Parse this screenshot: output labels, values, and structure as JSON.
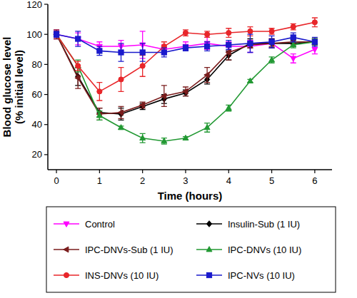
{
  "chart_data": {
    "type": "line",
    "x_label": "Time (hours)",
    "y_label": [
      "Blood glucose level",
      "(% initial level)"
    ],
    "x": [
      0,
      0.5,
      1,
      1.5,
      2,
      2.5,
      3,
      3.5,
      4,
      4.5,
      5,
      5.5,
      6
    ],
    "xlim": [
      -0.2,
      6.4
    ],
    "xticks": [
      0,
      1,
      2,
      3,
      4,
      5,
      6
    ],
    "ylim": [
      10,
      120
    ],
    "yticks": [
      20,
      40,
      60,
      80,
      100,
      120
    ],
    "grid": false,
    "legend": "bottom",
    "series": [
      {
        "name": "Control",
        "color": "#ff00ff",
        "marker": "triangle-down",
        "values": [
          100,
          97,
          92,
          92,
          93,
          90,
          92,
          94,
          92,
          92,
          94,
          84,
          90
        ],
        "errors": [
          3,
          4,
          3,
          4,
          9,
          3,
          3,
          4,
          3,
          4,
          3,
          3,
          3
        ]
      },
      {
        "name": "Insulin-Sub (1 IU)",
        "color": "#000000",
        "marker": "diamond",
        "values": [
          100,
          72,
          48,
          47,
          52,
          57,
          61,
          70,
          86,
          94,
          94,
          94,
          95
        ],
        "errors": [
          2,
          6,
          3,
          4,
          2,
          3,
          2,
          3,
          3,
          3,
          3,
          2,
          2
        ]
      },
      {
        "name": "IPC-DNVs-Sub (1 IU)",
        "color": "#7a1c1c",
        "marker": "triangle-left",
        "values": [
          100,
          71,
          47,
          48,
          53,
          59,
          62,
          73,
          88,
          93,
          94,
          95,
          95
        ],
        "errors": [
          3,
          7,
          4,
          4,
          2,
          7,
          3,
          5,
          5,
          2,
          2,
          2,
          2
        ]
      },
      {
        "name": "IPC-DNVs (10 IU)",
        "color": "#229933",
        "marker": "triangle-up",
        "values": [
          100,
          79,
          46,
          38,
          31,
          29,
          31,
          38,
          51,
          69,
          83,
          93,
          95
        ],
        "errors": [
          2,
          4,
          3,
          1,
          3,
          2,
          1,
          3,
          2,
          1,
          2,
          2,
          2
        ]
      },
      {
        "name": "INS-DNVs (10 IU)",
        "color": "#e8262a",
        "marker": "circle",
        "values": [
          100,
          79,
          62,
          70,
          79,
          92,
          101,
          100,
          101,
          102,
          102,
          105,
          108
        ],
        "errors": [
          2,
          3,
          6,
          8,
          7,
          3,
          2,
          2,
          3,
          3,
          2,
          2,
          3
        ]
      },
      {
        "name": "IPC-NVs (10 IU)",
        "color": "#1a1acc",
        "marker": "square",
        "values": [
          100,
          97,
          89,
          88,
          88,
          88,
          91,
          92,
          93,
          94,
          95,
          98,
          95
        ],
        "errors": [
          2,
          5,
          3,
          6,
          6,
          3,
          2,
          3,
          3,
          6,
          4,
          3,
          3
        ]
      }
    ]
  }
}
